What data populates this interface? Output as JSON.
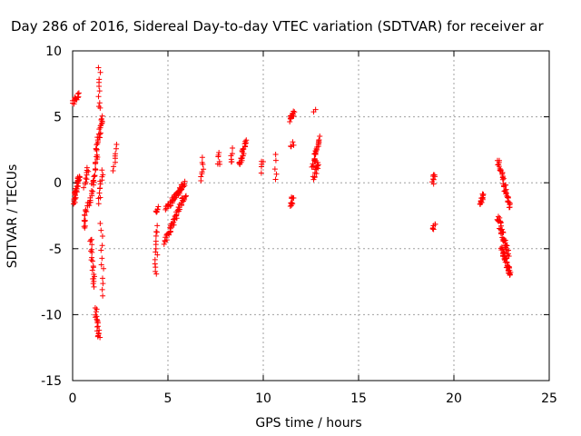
{
  "chart_data": {
    "type": "scatter",
    "title": "Day 286 of 2016, Sidereal Day-to-day VTEC variation (SDTVAR) for receiver ar",
    "xlabel": "GPS time / hours",
    "ylabel": "SDTVAR / TECUs",
    "xlim": [
      0,
      25
    ],
    "ylim": [
      -15,
      10
    ],
    "xticks": [
      0,
      5,
      10,
      15,
      20,
      25
    ],
    "yticks": [
      -15,
      -10,
      -5,
      0,
      5,
      10
    ],
    "grid": true,
    "marker": "plus",
    "color": "#ff0000",
    "clusters": [
      {
        "x0": 0.0,
        "y0": 6.1,
        "x1": 0.3,
        "y1": 6.7,
        "n": 14
      },
      {
        "x0": 0.05,
        "y0": -1.5,
        "x1": 0.35,
        "y1": 0.6,
        "n": 40
      },
      {
        "x0": 0.6,
        "y0": -3.5,
        "x1": 0.75,
        "y1": -1.5,
        "n": 14
      },
      {
        "x0": 0.6,
        "y0": -0.3,
        "x1": 0.8,
        "y1": 1.2,
        "n": 10
      },
      {
        "x0": 0.9,
        "y0": -1.8,
        "x1": 1.3,
        "y1": 2.5,
        "n": 30
      },
      {
        "x0": 0.95,
        "y0": -4.2,
        "x1": 1.15,
        "y1": -8.0,
        "n": 20
      },
      {
        "x0": 1.2,
        "y0": -9.5,
        "x1": 1.4,
        "y1": -11.8,
        "n": 20
      },
      {
        "x0": 1.25,
        "y0": 2.5,
        "x1": 1.55,
        "y1": 5.0,
        "n": 24
      },
      {
        "x0": 1.4,
        "y0": 5.5,
        "x1": 1.4,
        "y1": 8.7,
        "n": 10
      },
      {
        "x0": 1.5,
        "y0": -3.2,
        "x1": 1.6,
        "y1": -8.6,
        "n": 12
      },
      {
        "x0": 1.4,
        "y0": -1.5,
        "x1": 1.55,
        "y1": 1.0,
        "n": 12
      },
      {
        "x0": 2.15,
        "y0": 1.0,
        "x1": 2.25,
        "y1": 2.8,
        "n": 8
      },
      {
        "x0": 4.35,
        "y0": -2.2,
        "x1": 4.45,
        "y1": -1.9,
        "n": 6
      },
      {
        "x0": 4.35,
        "y0": -6.9,
        "x1": 4.45,
        "y1": -3.3,
        "n": 14
      },
      {
        "x0": 4.85,
        "y0": -4.5,
        "x1": 5.9,
        "y1": -0.9,
        "n": 50
      },
      {
        "x0": 4.9,
        "y0": -2.0,
        "x1": 5.9,
        "y1": 0.0,
        "n": 50
      },
      {
        "x0": 6.75,
        "y0": 0.3,
        "x1": 6.85,
        "y1": 1.8,
        "n": 8
      },
      {
        "x0": 7.65,
        "y0": 1.3,
        "x1": 7.7,
        "y1": 2.3,
        "n": 6
      },
      {
        "x0": 8.3,
        "y0": 1.5,
        "x1": 8.35,
        "y1": 2.6,
        "n": 6
      },
      {
        "x0": 8.75,
        "y0": 1.3,
        "x1": 9.1,
        "y1": 3.2,
        "n": 26
      },
      {
        "x0": 9.9,
        "y0": 0.9,
        "x1": 9.95,
        "y1": 1.7,
        "n": 5
      },
      {
        "x0": 10.65,
        "y0": 0.1,
        "x1": 10.65,
        "y1": 2.1,
        "n": 5
      },
      {
        "x0": 11.4,
        "y0": 4.8,
        "x1": 11.6,
        "y1": 5.3,
        "n": 14
      },
      {
        "x0": 11.45,
        "y0": 2.7,
        "x1": 11.55,
        "y1": 3.0,
        "n": 5
      },
      {
        "x0": 11.45,
        "y0": -1.8,
        "x1": 11.55,
        "y1": -1.0,
        "n": 10
      },
      {
        "x0": 12.65,
        "y0": 5.5,
        "x1": 12.7,
        "y1": 5.6,
        "n": 2
      },
      {
        "x0": 12.6,
        "y0": 1.2,
        "x1": 12.95,
        "y1": 3.4,
        "n": 26
      },
      {
        "x0": 12.65,
        "y0": 0.3,
        "x1": 12.9,
        "y1": 1.5,
        "n": 14
      },
      {
        "x0": 18.9,
        "y0": 0.0,
        "x1": 19.0,
        "y1": 0.6,
        "n": 8
      },
      {
        "x0": 18.9,
        "y0": -3.6,
        "x1": 19.0,
        "y1": -3.1,
        "n": 6
      },
      {
        "x0": 21.35,
        "y0": -1.6,
        "x1": 21.55,
        "y1": -0.9,
        "n": 14
      },
      {
        "x0": 22.3,
        "y0": 1.8,
        "x1": 22.95,
        "y1": -2.0,
        "n": 40
      },
      {
        "x0": 22.3,
        "y0": -2.6,
        "x1": 22.85,
        "y1": -5.5,
        "n": 40
      },
      {
        "x0": 22.5,
        "y0": -5.0,
        "x1": 22.95,
        "y1": -7.0,
        "n": 40
      }
    ]
  }
}
